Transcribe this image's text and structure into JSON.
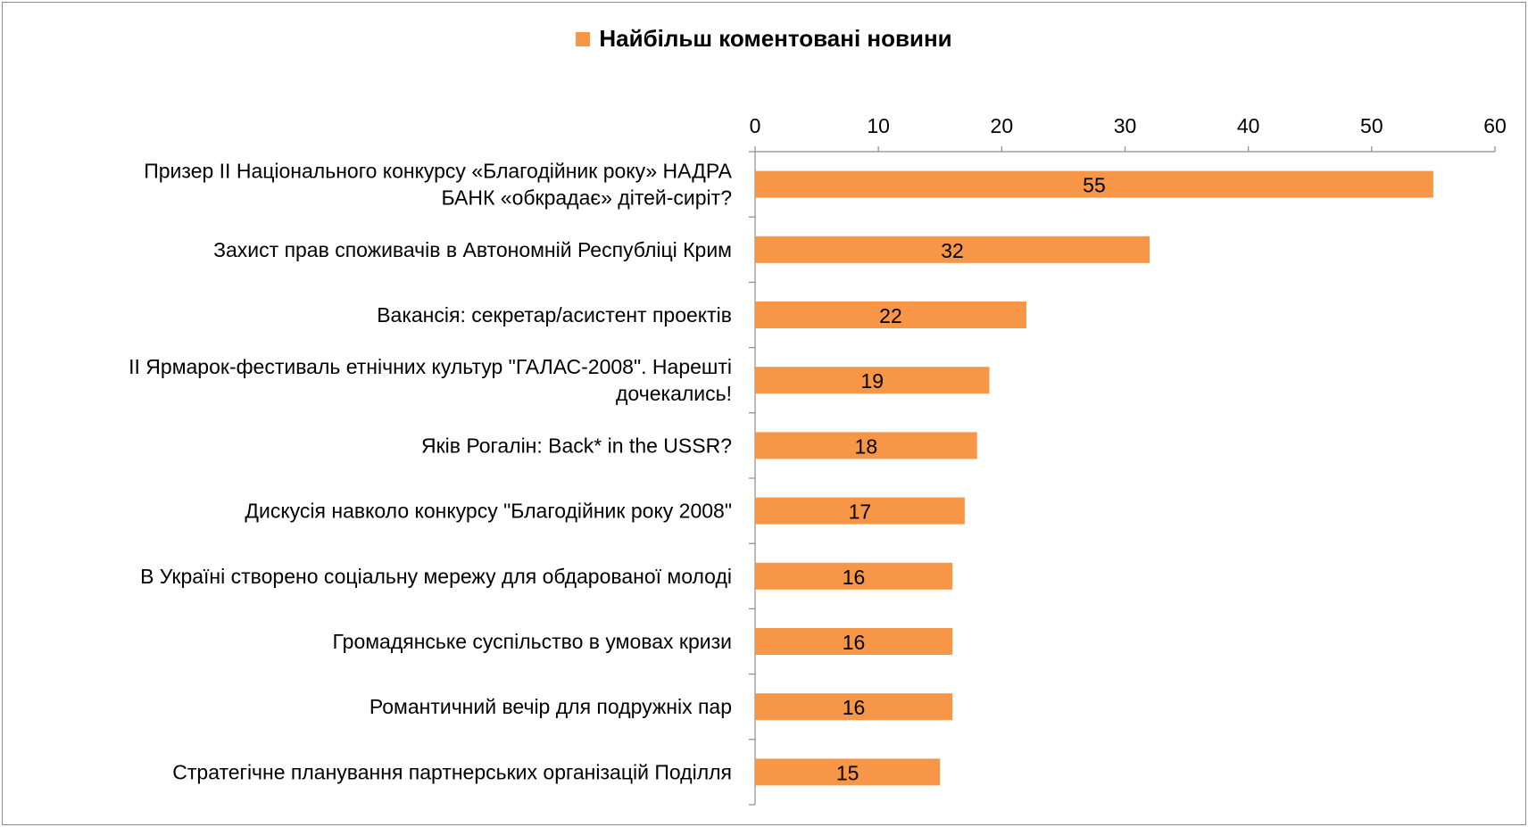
{
  "chart_data": {
    "type": "bar",
    "orientation": "horizontal",
    "legend": "Найбільш коментовані новини",
    "legend_position": "top",
    "xaxis_position": "top",
    "xlim": [
      0,
      60
    ],
    "ticks": [
      "0",
      "10",
      "20",
      "30",
      "40",
      "50",
      "60"
    ],
    "tick_values": [
      0,
      10,
      20,
      30,
      40,
      50,
      60
    ],
    "grid": false,
    "bar_color": "#F79646",
    "categories": [
      [
        "Призер ІІ Національного конкурсу «Благодійник року» НАДРА",
        "БАНК «обкрадає» дітей-сиріт?"
      ],
      [
        "Захист прав споживачів в Автономній Республіці Крим"
      ],
      [
        "Вакансія: секретар/асистент проектів"
      ],
      [
        "ІІ Ярмарок-фестиваль етнічних культур \"ГАЛАС-2008\". Нарешті",
        "дочекались!"
      ],
      [
        "Яків Рогалін: Back* in the USSR?"
      ],
      [
        "Дискусія навколо конкурсу \"Благодійник року 2008\""
      ],
      [
        "В Україні створено соціальну мережу для обдарованої молоді"
      ],
      [
        "Громадянське суспільство в умовах кризи"
      ],
      [
        "Романтичний вечір для подружніх пар"
      ],
      [
        "Стратегічне планування партнерських організацій Поділля"
      ]
    ],
    "series": [
      {
        "name": "Найбільш коментовані новини",
        "values": [
          55,
          32,
          22,
          19,
          18,
          17,
          16,
          16,
          16,
          15
        ]
      }
    ]
  }
}
